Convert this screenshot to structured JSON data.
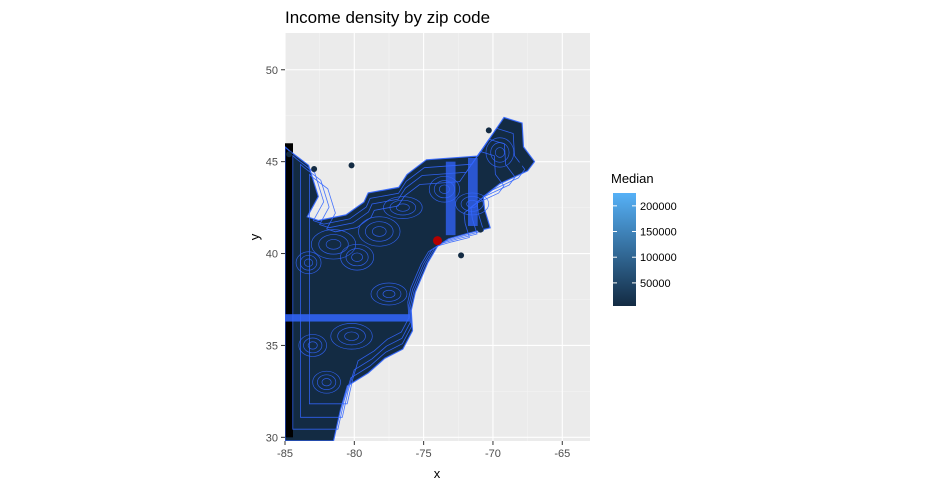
{
  "chart_data": {
    "type": "heatmap",
    "title": "Income density by zip code",
    "xlabel": "x",
    "ylabel": "y",
    "xlim": [
      -85,
      -63
    ],
    "ylim": [
      29.8,
      52
    ],
    "x_ticks": [
      -85,
      -80,
      -75,
      -70,
      -65
    ],
    "y_ticks": [
      30,
      35,
      40,
      45,
      50
    ],
    "x_tick_labels": [
      "-85",
      "-80",
      "-75",
      "-70",
      "-65"
    ],
    "y_tick_labels": [
      "30",
      "35",
      "40",
      "45",
      "50"
    ],
    "grid": true,
    "legend": {
      "title": "Median",
      "position": "right",
      "range": [
        5000,
        225000
      ],
      "ticks": [
        50000,
        100000,
        150000,
        200000
      ],
      "tick_labels": [
        "50000",
        "100000",
        "150000",
        "200000"
      ],
      "low_color": "#132B43",
      "high_color": "#56B1F7"
    },
    "highlight_point": {
      "x": -74.0,
      "y": 40.7,
      "color": "#b30000"
    },
    "contour_color": "#3366ff",
    "panel_background": "#ebebeb"
  }
}
